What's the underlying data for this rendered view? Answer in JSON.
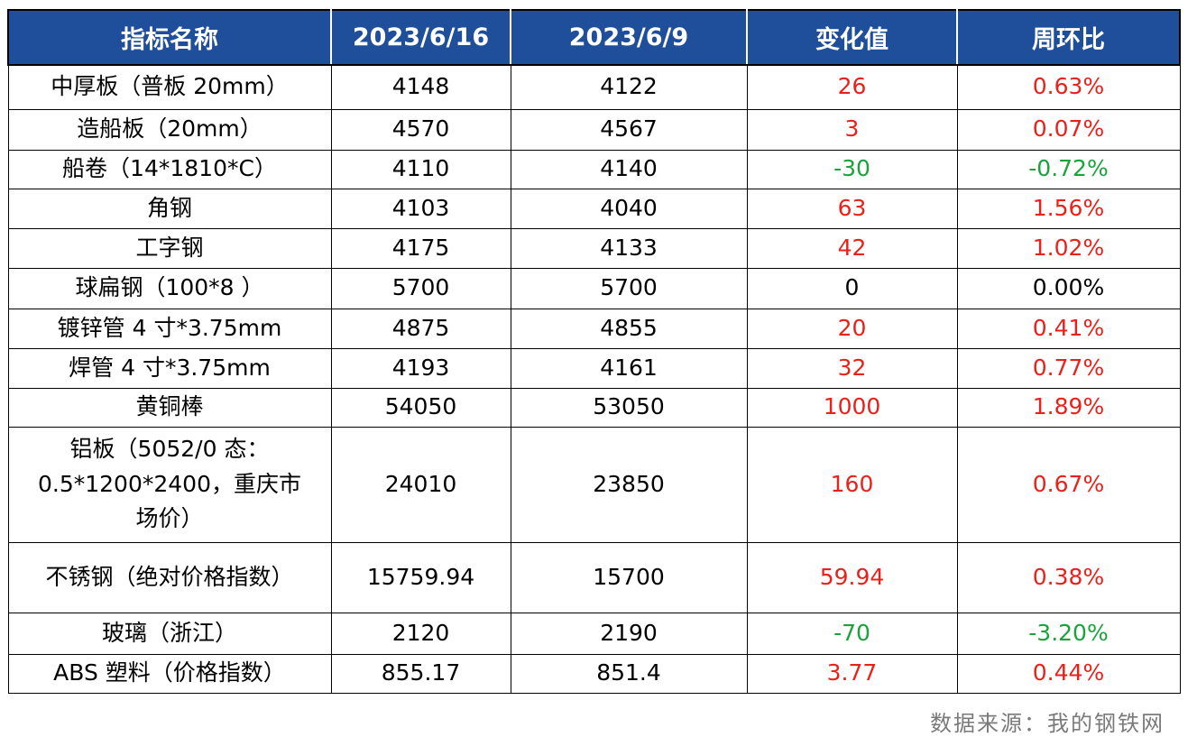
{
  "headers": [
    "指标名称",
    "2023/6/16",
    "2023/6/9",
    "变化值",
    "周环比"
  ],
  "rows": [
    {
      "name": "中厚板（普板 20mm）",
      "cur": "4148",
      "prev": "4122",
      "chg": "26",
      "pct": "0.63%",
      "dir": "up"
    },
    {
      "name": "造船板（20mm）",
      "cur": "4570",
      "prev": "4567",
      "chg": "3",
      "pct": "0.07%",
      "dir": "up"
    },
    {
      "name": "船卷（14*1810*C）",
      "cur": "4110",
      "prev": "4140",
      "chg": "-30",
      "pct": "-0.72%",
      "dir": "down"
    },
    {
      "name": "角钢",
      "cur": "4103",
      "prev": "4040",
      "chg": "63",
      "pct": "1.56%",
      "dir": "up"
    },
    {
      "name": "工字钢",
      "cur": "4175",
      "prev": "4133",
      "chg": "42",
      "pct": "1.02%",
      "dir": "up"
    },
    {
      "name": "球扁钢（100*8 ）",
      "cur": "5700",
      "prev": "5700",
      "chg": "0",
      "pct": "0.00%",
      "dir": "flat"
    },
    {
      "name": "镀锌管 4 寸*3.75mm",
      "cur": "4875",
      "prev": "4855",
      "chg": "20",
      "pct": "0.41%",
      "dir": "up"
    },
    {
      "name": "焊管 4 寸*3.75mm",
      "cur": "4193",
      "prev": "4161",
      "chg": "32",
      "pct": "0.77%",
      "dir": "up"
    },
    {
      "name": "黄铜棒",
      "cur": "54050",
      "prev": "53050",
      "chg": "1000",
      "pct": "1.89%",
      "dir": "up"
    },
    {
      "name": "铝板（5052/0 态：\n0.5*1200*2400，重庆市\n场价）",
      "cur": "24010",
      "prev": "23850",
      "chg": "160",
      "pct": "0.67%",
      "dir": "up"
    },
    {
      "name": "不锈钢（绝对价格指数）",
      "cur": "15759.94",
      "prev": "15700",
      "chg": "59.94",
      "pct": "0.38%",
      "dir": "up"
    },
    {
      "name": "玻璃（浙江）",
      "cur": "2120",
      "prev": "2190",
      "chg": "-70",
      "pct": "-3.20%",
      "dir": "down"
    },
    {
      "name": "ABS 塑料（价格指数）",
      "cur": "855.17",
      "prev": "851.4",
      "chg": "3.77",
      "pct": "0.44%",
      "dir": "up"
    }
  ],
  "source": "数据来源：我的钢铁网",
  "colors": {
    "header_bg": "#1f4e9a",
    "up": "#e8221b",
    "down": "#1aa33a"
  }
}
